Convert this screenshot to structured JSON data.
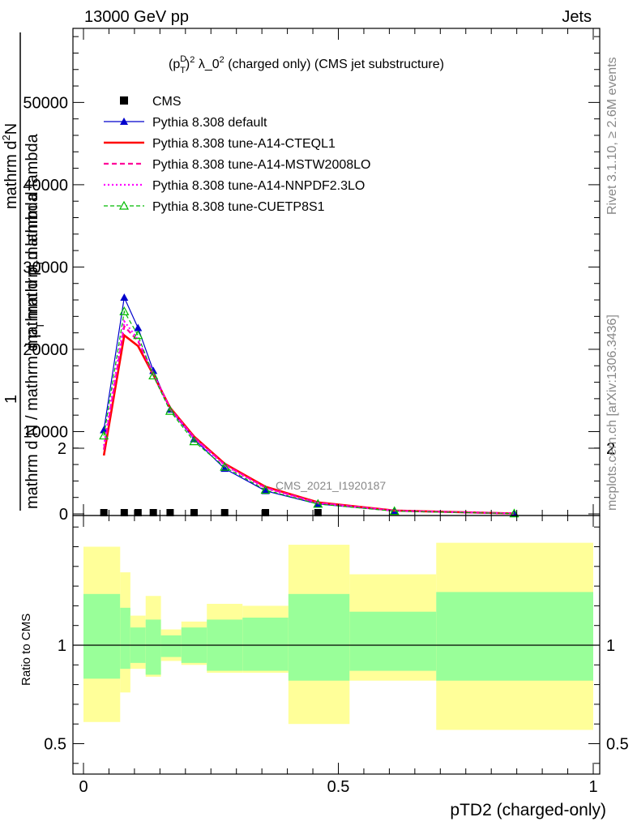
{
  "header": {
    "left": "13000 GeV pp",
    "right": "Jets"
  },
  "side_text": {
    "rivet": "Rivet 3.1.10, ≥ 2.6M events",
    "mcplots": "mcplots.cern.ch [arXiv:1306.3436]"
  },
  "watermark": "CMS_2021_I1920187",
  "chart_data": {
    "type": "line",
    "title_parts": {
      "p": "(p",
      "sup": "D",
      "sub": "T",
      "rest": ")",
      "exp": "2",
      "tail": " λ_0",
      "exp2": "2",
      "suffix": " (charged only) (CMS jet substructure)"
    },
    "xlabel": "pTD2 (charged-only)",
    "ylabel_main": {
      "numerator": "mathrm d²N",
      "denominator": "mathrm d p_T mathrm d lambda",
      "full": "1 / mathrm N / mathrm d p_T mathrm d lambda"
    },
    "ylabel_parts": {
      "frac_one": "1",
      "numer": "mathrm d",
      "numer_sup": "2",
      "numer_tail": "N",
      "denom_a": "mathrm d p",
      "denom_sub": "T",
      "denom_b": "mathrm d lambda",
      "lower": "mathrm d N / mathrm d p",
      "lower_sub": "T",
      "lower_tail": "mathrm d lambda"
    },
    "ylabel_ratio": "Ratio to CMS",
    "xlim": [
      0,
      1
    ],
    "ylim": [
      0,
      59000
    ],
    "ratio_ylim": [
      0.3,
      2.3
    ],
    "x_ticks": [
      0,
      0.5,
      1
    ],
    "x_tick_labels": [
      "0",
      "0.5",
      "1"
    ],
    "y_ticks": [
      0,
      10000,
      20000,
      30000,
      40000,
      50000
    ],
    "y_tick_labels": [
      "0",
      "10000",
      "20000",
      "30000",
      "40000",
      "50000"
    ],
    "ratio_ticks": [
      0.5,
      1,
      2
    ],
    "ratio_tick_labels": [
      "0.5",
      "1",
      "2"
    ],
    "cms_x": [
      0.04,
      0.08,
      0.107,
      0.137,
      0.17,
      0.217,
      0.277,
      0.357,
      0.46
    ],
    "series": [
      {
        "name": "CMS",
        "style": "cms-marker",
        "color": "#000000",
        "x": [
          0.04,
          0.08,
          0.107,
          0.137,
          0.17,
          0.217,
          0.277,
          0.357,
          0.46
        ],
        "y": [
          0,
          0,
          0,
          0,
          0,
          0,
          0,
          0,
          0
        ]
      },
      {
        "name": "Pythia 8.308 default",
        "style": "solid-triangle",
        "color": "#0000cc",
        "x": [
          0.04,
          0.08,
          0.107,
          0.137,
          0.17,
          0.217,
          0.277,
          0.357,
          0.46,
          0.61,
          0.845
        ],
        "y": [
          10200,
          26300,
          22600,
          17400,
          12700,
          9100,
          5500,
          2800,
          1200,
          350,
          40
        ]
      },
      {
        "name": "Pythia 8.308 tune-A14-CTEQL1",
        "style": "thick-solid",
        "color": "#ff0000",
        "x": [
          0.04,
          0.08,
          0.107,
          0.137,
          0.17,
          0.217,
          0.277,
          0.357,
          0.46,
          0.61,
          0.845
        ],
        "y": [
          7100,
          21700,
          20400,
          16900,
          12900,
          9400,
          6100,
          3300,
          1400,
          400,
          50
        ]
      },
      {
        "name": "Pythia 8.308 tune-A14-MSTW2008LO",
        "style": "dashed",
        "color": "#ff0099",
        "x": [
          0.04,
          0.08,
          0.107,
          0.137,
          0.17,
          0.217,
          0.277,
          0.357,
          0.46,
          0.61,
          0.845
        ],
        "y": [
          7800,
          22800,
          21000,
          17000,
          12800,
          9300,
          6000,
          3200,
          1350,
          380,
          45
        ]
      },
      {
        "name": "Pythia 8.308 tune-A14-NNPDF2.3LO",
        "style": "dotted",
        "color": "#ff00ff",
        "x": [
          0.04,
          0.08,
          0.107,
          0.137,
          0.17,
          0.217,
          0.277,
          0.357,
          0.46,
          0.61,
          0.845
        ],
        "y": [
          8300,
          23400,
          21200,
          17000,
          12800,
          9200,
          5900,
          3100,
          1300,
          370,
          45
        ]
      },
      {
        "name": "Pythia 8.308 tune-CUETP8S1",
        "style": "dashed-open-triangle",
        "color": "#00bb00",
        "x": [
          0.04,
          0.08,
          0.107,
          0.137,
          0.17,
          0.217,
          0.277,
          0.357,
          0.46,
          0.61,
          0.845
        ],
        "y": [
          9500,
          24600,
          21700,
          16800,
          12500,
          8800,
          5700,
          2900,
          1200,
          330,
          40
        ]
      }
    ],
    "ratio_bands": {
      "x_edges": [
        0,
        0.072,
        0.092,
        0.122,
        0.152,
        0.192,
        0.242,
        0.312,
        0.402,
        0.522,
        0.692,
        1.0
      ],
      "inner_low": [
        0.83,
        0.88,
        0.91,
        0.85,
        0.94,
        0.91,
        0.87,
        0.87,
        0.82,
        0.87,
        0.82
      ],
      "inner_high": [
        1.26,
        1.19,
        1.09,
        1.13,
        1.05,
        1.09,
        1.13,
        1.14,
        1.26,
        1.17,
        1.27
      ],
      "outer_low": [
        0.61,
        0.76,
        0.88,
        0.84,
        0.92,
        0.9,
        0.86,
        0.86,
        0.6,
        0.82,
        0.57
      ],
      "outer_high": [
        1.5,
        1.37,
        1.15,
        1.25,
        1.08,
        1.12,
        1.21,
        1.2,
        1.51,
        1.36,
        1.52
      ],
      "inner_color": "#99ff99",
      "outer_color": "#ffff99"
    }
  }
}
